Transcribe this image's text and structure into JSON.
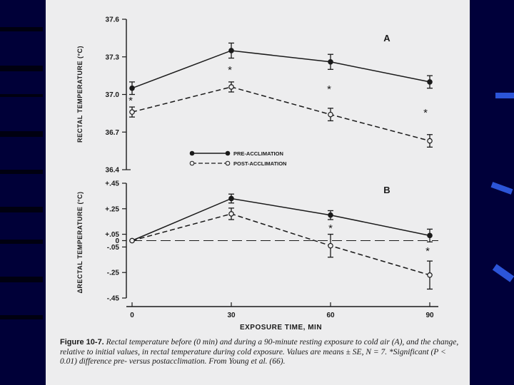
{
  "background": {
    "frame_color": "#00003a",
    "slide_color": "#ededee",
    "accent": "#2c55d8"
  },
  "chart_data": [
    {
      "type": "line",
      "panel_label": "A",
      "ylabel": "RECTAL TEMPERATURE (°C)",
      "ylim": [
        36.4,
        37.6
      ],
      "yticks": [
        "37.6",
        "37.3",
        "37.0",
        "36.7",
        "36.4"
      ],
      "xticks": [
        "0",
        "30",
        "60",
        "90"
      ],
      "x": [
        0,
        30,
        60,
        90
      ],
      "series": [
        {
          "name": "PRE-ACCLIMATION",
          "marker": "filled-circle",
          "style": "solid",
          "values": [
            37.05,
            37.35,
            37.26,
            37.1
          ],
          "error": [
            0.05,
            0.06,
            0.06,
            0.05
          ]
        },
        {
          "name": "POST-ACCLIMATION",
          "marker": "open-circle",
          "style": "dashed",
          "values": [
            36.86,
            37.06,
            36.84,
            36.63
          ],
          "error": [
            0.04,
            0.04,
            0.05,
            0.05
          ]
        }
      ],
      "significance_markers": [
        "*",
        "*",
        "*",
        "*"
      ]
    },
    {
      "type": "line",
      "panel_label": "B",
      "ylabel": "ΔRECTAL TEMPERATURE (°C)",
      "ylim": [
        -0.45,
        0.45
      ],
      "yticks": [
        "+.45",
        "+.25",
        "+.05",
        "0",
        "-.05",
        "-.25",
        "-.45"
      ],
      "xticks": [
        "0",
        "30",
        "60",
        "90"
      ],
      "xlabel": "EXPOSURE TIME, MIN",
      "x": [
        0,
        30,
        60,
        90
      ],
      "series": [
        {
          "name": "PRE-ACCLIMATION",
          "marker": "filled-circle",
          "style": "solid",
          "values": [
            0.0,
            0.33,
            0.2,
            0.04
          ],
          "error": [
            0,
            0.035,
            0.035,
            0.05
          ]
        },
        {
          "name": "POST-ACCLIMATION",
          "marker": "open-circle",
          "style": "dashed",
          "values": [
            0.0,
            0.21,
            -0.04,
            -0.27
          ],
          "error": [
            0,
            0.045,
            0.09,
            0.11
          ]
        }
      ],
      "significance_markers": [
        "*",
        "*"
      ]
    }
  ],
  "caption": {
    "figure_id": "Figure 10-7.",
    "text": "Rectal temperature before (0 min) and during a 90-minute resting exposure to cold air (A), and the change, relative to initial values, in rectal temperature during cold exposure. Values are means ± SE, N = 7. *Significant (P < 0.01) difference pre- versus postacclimation. From Young et al. (66)."
  }
}
